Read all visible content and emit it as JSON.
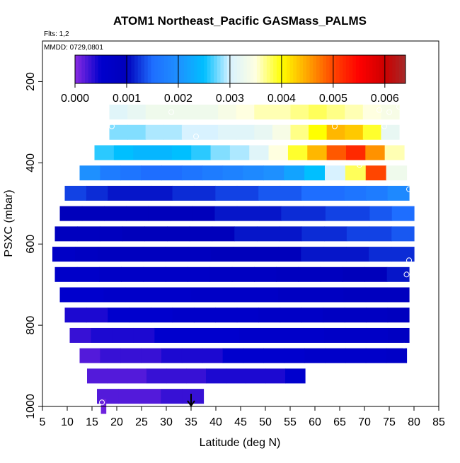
{
  "chart_data": {
    "type": "heatmap",
    "title": "ATOM1 Northeast_Pacific GASMass_PALMS",
    "annotations": {
      "flights": "Flts: 1,2",
      "dates": "MMDD: 0729,0801"
    },
    "xlabel": "Latitude (deg N)",
    "ylabel": "PSXC (mbar)",
    "xlim": [
      5,
      85
    ],
    "ylim": [
      1000,
      100
    ],
    "y_reversed": true,
    "x_ticks": [
      5,
      10,
      15,
      20,
      25,
      30,
      35,
      40,
      45,
      50,
      55,
      60,
      65,
      70,
      75,
      80,
      85
    ],
    "y_ticks": [
      200,
      400,
      600,
      800,
      1000
    ],
    "colorbar": {
      "range": [
        0,
        0.0064
      ],
      "ticks": [
        "0.000",
        "0.001",
        "0.002",
        "0.003",
        "0.004",
        "0.005",
        "0.006"
      ],
      "tick_values": [
        0,
        0.001,
        0.002,
        0.003,
        0.004,
        0.005,
        0.006
      ],
      "stops": [
        {
          "v": 0.0,
          "c": "#8a2be2"
        },
        {
          "v": 0.0005,
          "c": "#0000cd"
        },
        {
          "v": 0.001,
          "c": "#0000bb"
        },
        {
          "v": 0.0015,
          "c": "#1e6eff"
        },
        {
          "v": 0.002,
          "c": "#1e90ff"
        },
        {
          "v": 0.0025,
          "c": "#00bfff"
        },
        {
          "v": 0.003,
          "c": "#d8f2ff"
        },
        {
          "v": 0.0035,
          "c": "#ffffe0"
        },
        {
          "v": 0.004,
          "c": "#ffff00"
        },
        {
          "v": 0.0045,
          "c": "#ffa500"
        },
        {
          "v": 0.005,
          "c": "#ff4500"
        },
        {
          "v": 0.0055,
          "c": "#ff0000"
        },
        {
          "v": 0.006,
          "c": "#cc0000"
        },
        {
          "v": 0.0064,
          "c": "#a52a2a"
        }
      ]
    },
    "rows": [
      {
        "p": 275,
        "lat": [
          18.5,
          77
        ],
        "values": [
          0.0031,
          0.0032,
          0.0033,
          0.0033,
          0.0033,
          0.0033,
          0.0034,
          0.0035,
          0.0036,
          0.0036,
          0.0037,
          0.0038,
          0.0037,
          0.0036,
          0.0035,
          0.0034
        ]
      },
      {
        "p": 325,
        "lat": [
          18.5,
          77
        ],
        "values": [
          0.0028,
          0.0028,
          0.0029,
          0.0029,
          0.003,
          0.003,
          0.0031,
          0.0031,
          0.0032,
          0.0034,
          0.0037,
          0.004,
          0.0044,
          0.0043,
          0.0039,
          0.0032
        ]
      },
      {
        "p": 375,
        "lat": [
          15.5,
          78
        ],
        "values": [
          0.0026,
          0.0025,
          0.0024,
          0.0024,
          0.0025,
          0.0026,
          0.0028,
          0.0029,
          0.0031,
          0.0035,
          0.0039,
          0.0044,
          0.0049,
          0.0052,
          0.0046,
          0.0036
        ]
      },
      {
        "p": 425,
        "lat": [
          12.5,
          78.5
        ],
        "values": [
          0.002,
          0.0017,
          0.0016,
          0.0015,
          0.0015,
          0.0016,
          0.0017,
          0.0018,
          0.0019,
          0.002,
          0.0022,
          0.0025,
          0.003,
          0.0038,
          0.005,
          0.0033
        ]
      },
      {
        "p": 475,
        "lat": [
          9.5,
          79
        ],
        "values": [
          0.0013,
          0.0012,
          0.0011,
          0.0011,
          0.0011,
          0.0012,
          0.0012,
          0.0013,
          0.0013,
          0.0014,
          0.0014,
          0.0015,
          0.0015,
          0.0016,
          0.0017,
          0.0019
        ]
      },
      {
        "p": 525,
        "lat": [
          8.5,
          80
        ],
        "values": [
          0.001,
          0.001,
          0.001,
          0.001,
          0.001,
          0.001,
          0.001,
          0.0011,
          0.0011,
          0.0011,
          0.0012,
          0.0012,
          0.0013,
          0.0013,
          0.0014,
          0.0015
        ]
      },
      {
        "p": 575,
        "lat": [
          7.5,
          80
        ],
        "values": [
          0.0009,
          0.0009,
          0.0009,
          0.001,
          0.001,
          0.001,
          0.001,
          0.001,
          0.0011,
          0.0011,
          0.0011,
          0.0012,
          0.0012,
          0.0013,
          0.0013,
          0.0014
        ]
      },
      {
        "p": 625,
        "lat": [
          7,
          80
        ],
        "values": [
          0.0007,
          0.0008,
          0.0009,
          0.0009,
          0.0009,
          0.0009,
          0.0009,
          0.001,
          0.001,
          0.001,
          0.001,
          0.0011,
          0.0011,
          0.0011,
          0.0012,
          0.0012
        ]
      },
      {
        "p": 675,
        "lat": [
          7.5,
          79
        ],
        "values": [
          0.0006,
          0.0006,
          0.0007,
          0.0007,
          0.0007,
          0.0007,
          0.0007,
          0.0008,
          0.0008,
          0.0008,
          0.0009,
          0.0009,
          0.0009,
          0.001,
          0.001,
          0.0011
        ]
      },
      {
        "p": 725,
        "lat": [
          8.5,
          79
        ],
        "values": [
          0.0005,
          0.0005,
          0.0006,
          0.0006,
          0.0006,
          0.0006,
          0.0007,
          0.0007,
          0.0007,
          0.0007,
          0.0008,
          0.0008,
          0.0008,
          0.0009,
          0.0009,
          0.0009
        ]
      },
      {
        "p": 775,
        "lat": [
          9.5,
          79
        ],
        "values": [
          0.0004,
          0.0004,
          0.0005,
          0.0005,
          0.0005,
          0.0006,
          0.0006,
          0.0006,
          0.0006,
          0.0007,
          0.0007,
          0.0007,
          0.0008,
          0.0008,
          0.0008,
          0.0009
        ]
      },
      {
        "p": 825,
        "lat": [
          10.5,
          79
        ],
        "values": [
          0.0003,
          0.0004,
          0.0004,
          0.0004,
          0.0005,
          0.0005,
          0.0005,
          0.0005,
          0.0006,
          0.0006,
          0.0006,
          0.0006,
          0.0007,
          0.0007,
          0.0007,
          0.0008
        ]
      },
      {
        "p": 875,
        "lat": [
          12.5,
          78.5
        ],
        "values": [
          0.0002,
          0.0003,
          0.0003,
          0.0003,
          0.0004,
          0.0004,
          0.0004,
          0.0005,
          0.0005,
          0.0005,
          0.0005,
          0.0006,
          0.0006,
          0.0006,
          0.0006,
          0.0007
        ]
      },
      {
        "p": 925,
        "lat": [
          14,
          58
        ],
        "values": [
          0.0002,
          0.0002,
          0.0002,
          0.0003,
          0.0003,
          0.0003,
          0.0004,
          0.0004,
          0.0004,
          0.0004,
          0.0005
        ]
      },
      {
        "p": 975,
        "lat": [
          16,
          37.5
        ],
        "values": [
          0.0002,
          0.0002,
          0.0002,
          0.0003,
          0.0003
        ]
      },
      {
        "p": 1000,
        "lat": [
          16.8,
          17.8
        ],
        "values": [
          0.0001
        ]
      }
    ],
    "points": [
      [
        5.5,
        570
      ],
      [
        17,
        990
      ],
      [
        19,
        310
      ],
      [
        31,
        275
      ],
      [
        36,
        335
      ],
      [
        64,
        310
      ],
      [
        67.5,
        218
      ],
      [
        69,
        405
      ],
      [
        73,
        270
      ],
      [
        75,
        275
      ],
      [
        74,
        310
      ],
      [
        77,
        262
      ],
      [
        79,
        465
      ],
      [
        79,
        640
      ],
      [
        78.5,
        675
      ],
      [
        78,
        850
      ]
    ],
    "marker": {
      "lat": 35
    }
  }
}
